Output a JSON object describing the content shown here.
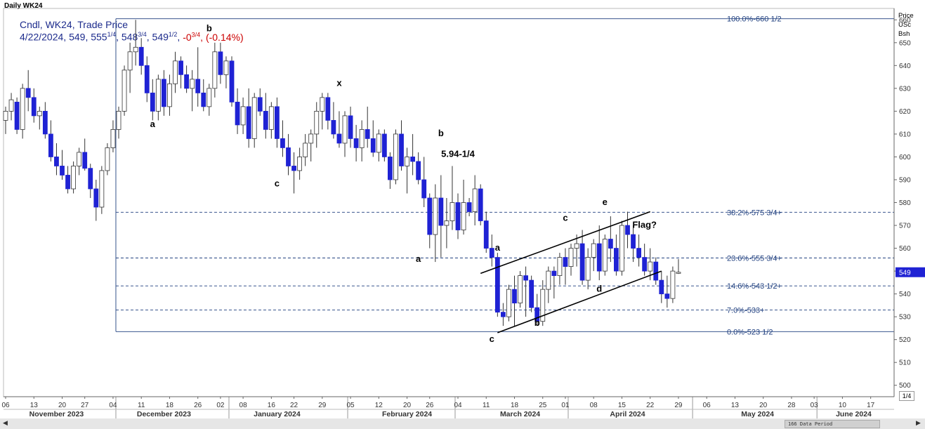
{
  "window": {
    "title": "Daily WK24"
  },
  "legend": {
    "line1": "Cndl, WK24, Trade Price",
    "date": "4/22/2024",
    "open": "549",
    "high": "555",
    "high_frac": "1/4",
    "low": "548",
    "low_frac": "3/4",
    "close": "549",
    "close_frac": "1/2",
    "change": "-0",
    "change_frac": "3/4",
    "change_pct": "(-0.14%)"
  },
  "price_axis": {
    "unit_lines": [
      "Price",
      "USc",
      "Bsh"
    ],
    "last_price_label": "549"
  },
  "status_bar": {
    "data_period": "166 Data Period",
    "page": "1/4"
  },
  "colors": {
    "up_fill": "#ffffff",
    "down_fill": "#1f22d4",
    "wick": "#333333",
    "fib_line": "#1f3f7f",
    "fib_text": "#1f3f7f",
    "label": "#000000",
    "change": "#cc0000"
  },
  "chart_data": {
    "type": "candlestick",
    "y_axis": {
      "min": 495,
      "max": 665,
      "ticks": [
        500,
        510,
        520,
        530,
        540,
        550,
        560,
        570,
        580,
        590,
        600,
        610,
        620,
        630,
        640,
        650,
        660
      ]
    },
    "x_ticks": [
      {
        "label": "06",
        "x": 0
      },
      {
        "label": "13",
        "x": 5
      },
      {
        "label": "20",
        "x": 10
      },
      {
        "label": "27",
        "x": 14
      },
      {
        "label": "04",
        "x": 19
      },
      {
        "label": "11",
        "x": 24
      },
      {
        "label": "18",
        "x": 29
      },
      {
        "label": "26",
        "x": 34
      },
      {
        "label": "02",
        "x": 38
      },
      {
        "label": "08",
        "x": 42
      },
      {
        "label": "16",
        "x": 47
      },
      {
        "label": "22",
        "x": 51
      },
      {
        "label": "29",
        "x": 56
      },
      {
        "label": "05",
        "x": 61
      },
      {
        "label": "12",
        "x": 66
      },
      {
        "label": "20",
        "x": 71
      },
      {
        "label": "26",
        "x": 75
      },
      {
        "label": "04",
        "x": 80
      },
      {
        "label": "11",
        "x": 85
      },
      {
        "label": "18",
        "x": 90
      },
      {
        "label": "25",
        "x": 95
      },
      {
        "label": "01",
        "x": 99
      },
      {
        "label": "08",
        "x": 104
      },
      {
        "label": "15",
        "x": 109
      },
      {
        "label": "22",
        "x": 114
      },
      {
        "label": "29",
        "x": 119
      },
      {
        "label": "06",
        "x": 124
      },
      {
        "label": "13",
        "x": 129
      },
      {
        "label": "20",
        "x": 134
      },
      {
        "label": "28",
        "x": 139
      },
      {
        "label": "03",
        "x": 143
      },
      {
        "label": "10",
        "x": 148
      },
      {
        "label": "17",
        "x": 153
      }
    ],
    "months": [
      {
        "label": "November 2023",
        "x": 9
      },
      {
        "label": "December 2023",
        "x": 28
      },
      {
        "label": "January 2024",
        "x": 48
      },
      {
        "label": "February 2024",
        "x": 71
      },
      {
        "label": "March 2024",
        "x": 91
      },
      {
        "label": "April 2024",
        "x": 110
      },
      {
        "label": "May 2024",
        "x": 133
      },
      {
        "label": "June 2024",
        "x": 150
      }
    ],
    "month_separators": [
      19.5,
      39.5,
      60.5,
      79.5,
      99.5,
      121.5,
      143.5
    ],
    "candles": [
      [
        616,
        622,
        610,
        620
      ],
      [
        620,
        628,
        616,
        625
      ],
      [
        624,
        626,
        610,
        612
      ],
      [
        612,
        632,
        608,
        630
      ],
      [
        630,
        638,
        620,
        626
      ],
      [
        626,
        630,
        615,
        618
      ],
      [
        618,
        622,
        612,
        620
      ],
      [
        620,
        624,
        608,
        610
      ],
      [
        610,
        616,
        598,
        600
      ],
      [
        600,
        606,
        592,
        596
      ],
      [
        596,
        603,
        590,
        592
      ],
      [
        592,
        596,
        584,
        586
      ],
      [
        586,
        598,
        584,
        596
      ],
      [
        596,
        604,
        592,
        602
      ],
      [
        602,
        608,
        594,
        595
      ],
      [
        595,
        597,
        582,
        586
      ],
      [
        586,
        590,
        572,
        578
      ],
      [
        578,
        596,
        575,
        594
      ],
      [
        594,
        606,
        592,
        604
      ],
      [
        604,
        616,
        602,
        612
      ],
      [
        612,
        622,
        608,
        620
      ],
      [
        620,
        640,
        618,
        638
      ],
      [
        638,
        650,
        628,
        646
      ],
      [
        646,
        660,
        640,
        648
      ],
      [
        648,
        652,
        636,
        640
      ],
      [
        640,
        644,
        624,
        628
      ],
      [
        628,
        634,
        616,
        620
      ],
      [
        620,
        636,
        616,
        634
      ],
      [
        634,
        638,
        618,
        622
      ],
      [
        622,
        636,
        618,
        632
      ],
      [
        632,
        646,
        628,
        642
      ],
      [
        642,
        644,
        630,
        636
      ],
      [
        636,
        640,
        628,
        630
      ],
      [
        630,
        638,
        620,
        634
      ],
      [
        634,
        648,
        622,
        628
      ],
      [
        628,
        634,
        620,
        622
      ],
      [
        622,
        632,
        618,
        630
      ],
      [
        630,
        650,
        626,
        646
      ],
      [
        646,
        650,
        632,
        636
      ],
      [
        636,
        644,
        630,
        642
      ],
      [
        642,
        644,
        622,
        624
      ],
      [
        624,
        630,
        610,
        614
      ],
      [
        614,
        626,
        610,
        622
      ],
      [
        622,
        630,
        604,
        608
      ],
      [
        608,
        628,
        604,
        626
      ],
      [
        626,
        630,
        618,
        620
      ],
      [
        620,
        628,
        608,
        612
      ],
      [
        612,
        624,
        608,
        622
      ],
      [
        622,
        626,
        604,
        608
      ],
      [
        608,
        616,
        600,
        604
      ],
      [
        604,
        610,
        592,
        596
      ],
      [
        596,
        602,
        584,
        594
      ],
      [
        594,
        604,
        590,
        600
      ],
      [
        600,
        610,
        596,
        606
      ],
      [
        606,
        612,
        598,
        610
      ],
      [
        610,
        624,
        604,
        620
      ],
      [
        620,
        628,
        612,
        626
      ],
      [
        626,
        628,
        612,
        616
      ],
      [
        616,
        624,
        608,
        610
      ],
      [
        610,
        620,
        604,
        606
      ],
      [
        606,
        620,
        600,
        618
      ],
      [
        618,
        622,
        604,
        608
      ],
      [
        608,
        614,
        598,
        604
      ],
      [
        604,
        616,
        598,
        612
      ],
      [
        612,
        622,
        604,
        608
      ],
      [
        608,
        616,
        600,
        602
      ],
      [
        602,
        612,
        598,
        610
      ],
      [
        610,
        612,
        598,
        600
      ],
      [
        600,
        602,
        586,
        590
      ],
      [
        590,
        612,
        588,
        610
      ],
      [
        610,
        616,
        594,
        596
      ],
      [
        596,
        604,
        584,
        600
      ],
      [
        600,
        610,
        592,
        598
      ],
      [
        598,
        602,
        588,
        590
      ],
      [
        590,
        600,
        578,
        582
      ],
      [
        582,
        584,
        560,
        566
      ],
      [
        566,
        588,
        554,
        582
      ],
      [
        582,
        592,
        556,
        570
      ],
      [
        570,
        582,
        560,
        572
      ],
      [
        572,
        596,
        568,
        580
      ],
      [
        580,
        584,
        564,
        568
      ],
      [
        568,
        590,
        566,
        580
      ],
      [
        580,
        582,
        574,
        576
      ],
      [
        576,
        592,
        570,
        586
      ],
      [
        586,
        588,
        570,
        572
      ],
      [
        572,
        576,
        558,
        560
      ],
      [
        560,
        566,
        552,
        556
      ],
      [
        556,
        558,
        530,
        532
      ],
      [
        532,
        536,
        526,
        530
      ],
      [
        530,
        544,
        528,
        542
      ],
      [
        542,
        548,
        526,
        536
      ],
      [
        536,
        550,
        534,
        548
      ],
      [
        548,
        552,
        530,
        546
      ],
      [
        546,
        548,
        532,
        534
      ],
      [
        534,
        540,
        526,
        528
      ],
      [
        528,
        546,
        526,
        542
      ],
      [
        542,
        552,
        536,
        550
      ],
      [
        550,
        552,
        538,
        548
      ],
      [
        548,
        558,
        544,
        556
      ],
      [
        556,
        560,
        544,
        552
      ],
      [
        552,
        562,
        548,
        560
      ],
      [
        560,
        566,
        552,
        562
      ],
      [
        562,
        568,
        544,
        546
      ],
      [
        546,
        560,
        542,
        556
      ],
      [
        556,
        564,
        550,
        562
      ],
      [
        562,
        570,
        546,
        550
      ],
      [
        550,
        566,
        548,
        564
      ],
      [
        564,
        574,
        554,
        560
      ],
      [
        560,
        566,
        548,
        550
      ],
      [
        550,
        572,
        548,
        570
      ],
      [
        570,
        576,
        560,
        566
      ],
      [
        566,
        570,
        554,
        560
      ],
      [
        560,
        566,
        552,
        556
      ],
      [
        556,
        562,
        548,
        550
      ],
      [
        550,
        560,
        546,
        554
      ],
      [
        554,
        556,
        544,
        546
      ],
      [
        546,
        550,
        536,
        540
      ],
      [
        540,
        548,
        534,
        538
      ],
      [
        538,
        552,
        536,
        550
      ],
      [
        549,
        555.25,
        548.75,
        549.5
      ]
    ],
    "fib_levels": [
      {
        "pct": "100.0%",
        "price_label": "660 1/2",
        "value": 660.5
      },
      {
        "pct": "38.2%",
        "price_label": "575 3/4+",
        "value": 575.75
      },
      {
        "pct": "23.6%",
        "price_label": "555 3/4+",
        "value": 555.75
      },
      {
        "pct": "14.6%",
        "price_label": "543 1/2+",
        "value": 543.5
      },
      {
        "pct": "7.0%",
        "price_label": "533+",
        "value": 533
      },
      {
        "pct": "0.0%",
        "price_label": "523 1/2",
        "value": 523.5
      }
    ],
    "fib_start_x": 19.5,
    "channel_lines": [
      {
        "x1": 84,
        "y1": 549,
        "x2": 114,
        "y2": 576
      },
      {
        "x1": 87,
        "y1": 523,
        "x2": 116,
        "y2": 550
      }
    ],
    "annotations": [
      {
        "text": "a",
        "x": 26,
        "y": 613
      },
      {
        "text": "b",
        "x": 36,
        "y": 655
      },
      {
        "text": "c",
        "x": 48,
        "y": 587
      },
      {
        "text": "x",
        "x": 59,
        "y": 631
      },
      {
        "text": "b",
        "x": 77,
        "y": 609
      },
      {
        "text": "5.94-1/4",
        "x": 80,
        "y": 600
      },
      {
        "text": "a",
        "x": 73,
        "y": 554
      },
      {
        "text": "a",
        "x": 87,
        "y": 559
      },
      {
        "text": "c",
        "x": 86,
        "y": 519
      },
      {
        "text": "b",
        "x": 94,
        "y": 526
      },
      {
        "text": "c",
        "x": 99,
        "y": 572
      },
      {
        "text": "e",
        "x": 106,
        "y": 579
      },
      {
        "text": "d",
        "x": 105,
        "y": 541
      },
      {
        "text": "Flag?",
        "x": 113,
        "y": 569
      }
    ]
  }
}
